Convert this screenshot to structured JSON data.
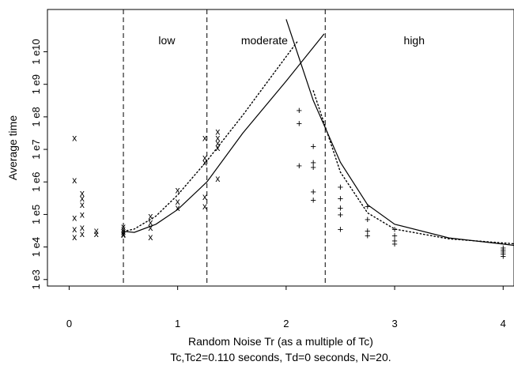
{
  "chart_data": {
    "type": "scatter",
    "title": "",
    "xlabel": "Random Noise Tr (as a multiple of Tc)",
    "subtitle": "Tc,Tc2=0.110 seconds, Td=0 seconds, N=20.",
    "ylabel": "Average time",
    "xlim": [
      -0.2,
      4.1
    ],
    "ylim_log10": [
      2.8,
      11.3
    ],
    "y_scale": "log",
    "x_ticks": [
      {
        "value": 0,
        "label": "0"
      },
      {
        "value": 1,
        "label": "1"
      },
      {
        "value": 2,
        "label": "2"
      },
      {
        "value": 3,
        "label": "3"
      },
      {
        "value": 4,
        "label": "4"
      }
    ],
    "y_ticks": [
      {
        "exp": 3,
        "label": "1 e3"
      },
      {
        "exp": 4,
        "label": "1 e4"
      },
      {
        "exp": 5,
        "label": "1 e5"
      },
      {
        "exp": 6,
        "label": "1 e6"
      },
      {
        "exp": 7,
        "label": "1 e7"
      },
      {
        "exp": 8,
        "label": "1 e8"
      },
      {
        "exp": 9,
        "label": "1 e9"
      },
      {
        "exp": 10,
        "label": "1 e10"
      }
    ],
    "regions": [
      {
        "label": "low",
        "x": 0.9
      },
      {
        "label": "moderate",
        "x": 1.8
      },
      {
        "label": "high",
        "x": 3.18
      }
    ],
    "region_boundaries": [
      0.5,
      1.27,
      2.36
    ],
    "grid": false,
    "x_markers": {
      "marker": "x",
      "points": [
        [
          0.05,
          7.35
        ],
        [
          0.05,
          6.05
        ],
        [
          0.05,
          4.9
        ],
        [
          0.05,
          4.3
        ],
        [
          0.05,
          4.55
        ],
        [
          0.12,
          5.65
        ],
        [
          0.12,
          5.5
        ],
        [
          0.12,
          5.3
        ],
        [
          0.12,
          5.0
        ],
        [
          0.12,
          4.6
        ],
        [
          0.12,
          4.4
        ],
        [
          0.25,
          4.5
        ],
        [
          0.25,
          4.4
        ],
        [
          0.5,
          4.62
        ],
        [
          0.5,
          4.55
        ],
        [
          0.5,
          4.48
        ],
        [
          0.5,
          4.42
        ],
        [
          0.5,
          4.38
        ],
        [
          0.75,
          4.95
        ],
        [
          0.75,
          4.75
        ],
        [
          0.75,
          4.6
        ],
        [
          0.75,
          4.3
        ],
        [
          1.0,
          5.75
        ],
        [
          1.0,
          5.4
        ],
        [
          1.0,
          5.2
        ],
        [
          1.25,
          7.35
        ],
        [
          1.25,
          6.75
        ],
        [
          1.25,
          6.6
        ],
        [
          1.25,
          5.55
        ],
        [
          1.25,
          5.25
        ],
        [
          1.37,
          7.55
        ],
        [
          1.37,
          7.35
        ],
        [
          1.37,
          7.2
        ],
        [
          1.37,
          7.05
        ],
        [
          1.37,
          6.1
        ]
      ]
    },
    "plus_markers": {
      "marker": "+",
      "points": [
        [
          2.12,
          8.2
        ],
        [
          2.12,
          7.8
        ],
        [
          2.12,
          6.5
        ],
        [
          2.25,
          7.1
        ],
        [
          2.25,
          6.6
        ],
        [
          2.25,
          6.45
        ],
        [
          2.25,
          5.7
        ],
        [
          2.25,
          5.45
        ],
        [
          2.5,
          5.85
        ],
        [
          2.5,
          5.5
        ],
        [
          2.5,
          5.2
        ],
        [
          2.5,
          5.0
        ],
        [
          2.5,
          4.55
        ],
        [
          2.75,
          5.25
        ],
        [
          2.75,
          4.85
        ],
        [
          2.75,
          4.5
        ],
        [
          2.75,
          4.35
        ],
        [
          3.0,
          4.55
        ],
        [
          3.0,
          4.35
        ],
        [
          3.0,
          4.2
        ],
        [
          3.0,
          4.1
        ],
        [
          4.0,
          3.98
        ],
        [
          4.0,
          3.92
        ],
        [
          4.0,
          3.86
        ],
        [
          4.0,
          3.8
        ],
        [
          4.0,
          3.72
        ]
      ]
    },
    "lines": [
      {
        "style": "dotted",
        "points": [
          [
            0.5,
            4.48
          ],
          [
            0.6,
            4.55
          ],
          [
            0.8,
            4.95
          ],
          [
            1.0,
            5.6
          ],
          [
            1.27,
            6.65
          ],
          [
            1.6,
            8.05
          ],
          [
            1.9,
            9.4
          ],
          [
            2.1,
            10.3
          ]
        ]
      },
      {
        "style": "solid",
        "points": [
          [
            0.5,
            4.48
          ],
          [
            0.6,
            4.45
          ],
          [
            0.8,
            4.7
          ],
          [
            1.0,
            5.15
          ],
          [
            1.27,
            6.0
          ],
          [
            1.6,
            7.5
          ],
          [
            2.0,
            9.1
          ],
          [
            2.35,
            10.55
          ]
        ]
      },
      {
        "style": "solid",
        "points": [
          [
            2.0,
            11.0
          ],
          [
            2.25,
            8.5
          ],
          [
            2.5,
            6.6
          ],
          [
            2.75,
            5.3
          ],
          [
            3.0,
            4.7
          ],
          [
            3.5,
            4.28
          ],
          [
            4.1,
            4.05
          ]
        ]
      },
      {
        "style": "dotted",
        "points": [
          [
            2.25,
            8.8
          ],
          [
            2.5,
            6.3
          ],
          [
            2.75,
            5.05
          ],
          [
            3.0,
            4.55
          ],
          [
            3.5,
            4.25
          ],
          [
            4.1,
            4.1
          ]
        ]
      }
    ]
  }
}
